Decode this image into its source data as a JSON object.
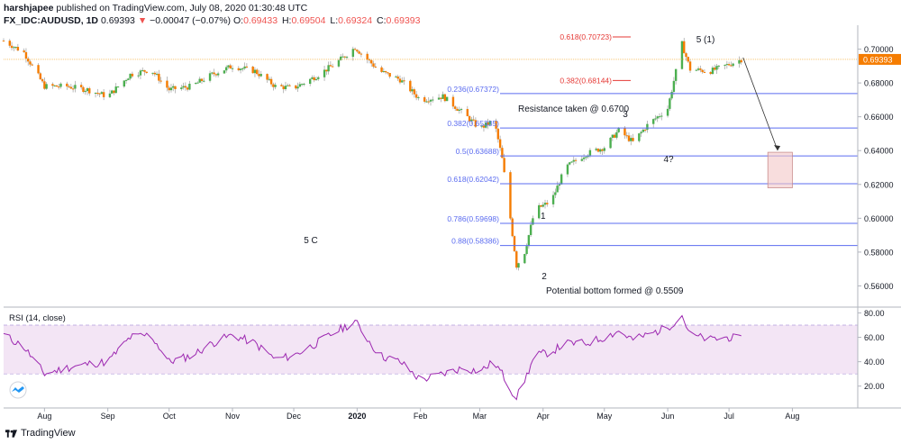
{
  "header": {
    "publisher": "harshjapee",
    "published_text": "published on TradingView.com, July 08, 2020 01:30:48 UTC",
    "symbol": "FX_IDC:AUDUSD, 1D",
    "last": "0.69393",
    "arrow": "▼",
    "change": "−0.00047 (−0.07%)",
    "o_label": "O:",
    "o_value": "0.69433",
    "h_label": "H:",
    "h_value": "0.69504",
    "l_label": "L:",
    "l_value": "0.69324",
    "c_label": "C:",
    "c_value": "0.69393"
  },
  "footer": {
    "brand": "TradingView"
  },
  "colors": {
    "up": "#26a69a",
    "down": "#ef5350",
    "candle_up": "#4caf50",
    "candle_down": "#f57c00",
    "fib_line": "#5b6cf0",
    "fib_red": "#e53935",
    "price_line": "#f5a623",
    "rsi_line": "#9c27b0",
    "rsi_band": "#f3e5f5",
    "box": "#f4c7c7"
  },
  "chart_data": [
    {
      "type": "candlestick",
      "title": "",
      "ylim": [
        0.548,
        0.712
      ],
      "y_ticks": [
        "0.70000",
        "0.68000",
        "0.66000",
        "0.64000",
        "0.62000",
        "0.60000",
        "0.58000",
        "0.56000"
      ],
      "x_ticks": [
        "Aug",
        "Sep",
        "Oct",
        "Nov",
        "Dec",
        "2020",
        "Feb",
        "Mar",
        "Apr",
        "May",
        "Jun",
        "Jul",
        "Aug"
      ],
      "last_price_label": "0.69393",
      "close_series": {
        "x": [
          "2019-07-12",
          "2019-07-22",
          "2019-08-01",
          "2019-08-12",
          "2019-08-22",
          "2019-09-01",
          "2019-09-12",
          "2019-09-22",
          "2019-10-01",
          "2019-10-12",
          "2019-10-22",
          "2019-11-01",
          "2019-11-12",
          "2019-11-22",
          "2019-12-01",
          "2019-12-12",
          "2019-12-22",
          "2019-12-31",
          "2020-01-12",
          "2020-01-22",
          "2020-02-01",
          "2020-02-12",
          "2020-02-22",
          "2020-03-01",
          "2020-03-08",
          "2020-03-12",
          "2020-03-16",
          "2020-03-19",
          "2020-03-23",
          "2020-03-28",
          "2020-04-05",
          "2020-04-12",
          "2020-04-22",
          "2020-05-01",
          "2020-05-08",
          "2020-05-15",
          "2020-05-22",
          "2020-06-01",
          "2020-06-08",
          "2020-06-12",
          "2020-06-22",
          "2020-07-01",
          "2020-07-07"
        ],
        "values": [
          0.705,
          0.698,
          0.678,
          0.678,
          0.676,
          0.672,
          0.685,
          0.688,
          0.676,
          0.678,
          0.685,
          0.69,
          0.687,
          0.678,
          0.677,
          0.684,
          0.692,
          0.701,
          0.687,
          0.682,
          0.67,
          0.672,
          0.662,
          0.653,
          0.658,
          0.635,
          0.6,
          0.572,
          0.58,
          0.605,
          0.61,
          0.63,
          0.638,
          0.642,
          0.652,
          0.645,
          0.655,
          0.665,
          0.703,
          0.688,
          0.687,
          0.691,
          0.6939
        ]
      },
      "fibonacci": [
        {
          "label": "0.236(0.67372)",
          "value": 0.67372
        },
        {
          "label": "0.382(0.65335)",
          "value": 0.65335
        },
        {
          "label": "0.5(0.63688)",
          "value": 0.63688
        },
        {
          "label": "0.618(0.62042)",
          "value": 0.62042
        },
        {
          "label": "0.786(0.59698)",
          "value": 0.59698
        },
        {
          "label": "0.88(0.58386)",
          "value": 0.58386
        }
      ],
      "fibonacci_extension": [
        {
          "label": "0.618(0.70723)",
          "value": 0.70723
        },
        {
          "label": "0.382(0.68144)",
          "value": 0.68144
        }
      ],
      "annotations": [
        {
          "text": "5 C"
        },
        {
          "text": "Resistance taken @ 0.6700"
        },
        {
          "text": "Potential bottom formed @ 0.5509"
        },
        {
          "text": "1"
        },
        {
          "text": "2"
        },
        {
          "text": "3"
        },
        {
          "text": "4?"
        },
        {
          "text": "5 (1)"
        }
      ],
      "target_zone": {
        "date_from": "2020-07-20",
        "date_to": "2020-08-01",
        "low": 0.618,
        "high": 0.639
      }
    },
    {
      "type": "line",
      "title": "RSI (14, close)",
      "ylim": [
        8,
        84
      ],
      "y_ticks": [
        "80.00",
        "60.00",
        "40.00",
        "20.00"
      ],
      "band": [
        30,
        70
      ],
      "x": [
        "2019-07-12",
        "2019-07-22",
        "2019-08-01",
        "2019-08-12",
        "2019-08-22",
        "2019-09-01",
        "2019-09-12",
        "2019-09-22",
        "2019-10-01",
        "2019-10-12",
        "2019-10-22",
        "2019-11-01",
        "2019-11-12",
        "2019-11-22",
        "2019-12-01",
        "2019-12-12",
        "2019-12-22",
        "2019-12-31",
        "2020-01-12",
        "2020-01-22",
        "2020-02-01",
        "2020-02-12",
        "2020-02-22",
        "2020-03-01",
        "2020-03-08",
        "2020-03-12",
        "2020-03-16",
        "2020-03-19",
        "2020-03-23",
        "2020-03-28",
        "2020-04-05",
        "2020-04-12",
        "2020-04-22",
        "2020-05-01",
        "2020-05-08",
        "2020-05-15",
        "2020-05-22",
        "2020-06-01",
        "2020-06-08",
        "2020-06-12",
        "2020-06-22",
        "2020-07-01",
        "2020-07-07"
      ],
      "values": [
        62,
        52,
        30,
        35,
        38,
        40,
        60,
        62,
        40,
        45,
        55,
        62,
        55,
        42,
        45,
        55,
        65,
        73,
        45,
        40,
        25,
        30,
        35,
        32,
        40,
        30,
        18,
        10,
        25,
        45,
        48,
        55,
        55,
        60,
        65,
        58,
        62,
        68,
        78,
        62,
        58,
        60,
        58
      ]
    }
  ]
}
